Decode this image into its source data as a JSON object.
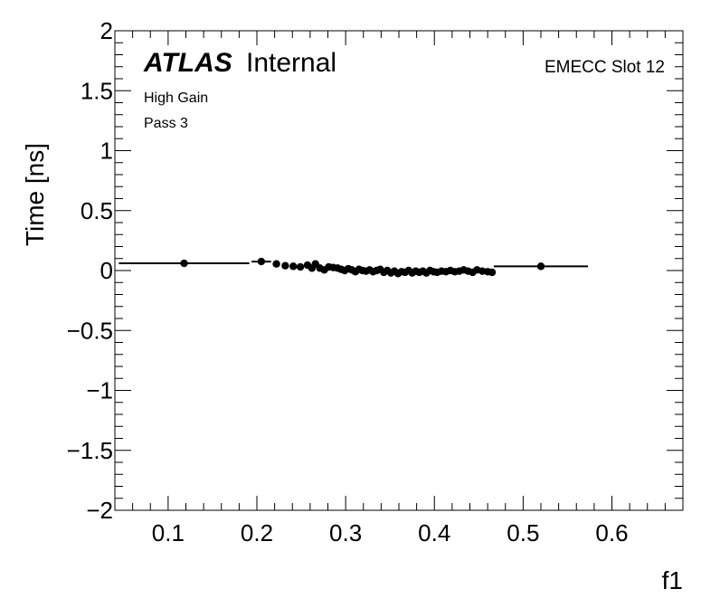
{
  "chart_data": {
    "type": "scatter",
    "title": "",
    "xlabel": "f1",
    "ylabel": "Time [ns]",
    "xlim": [
      0.04,
      0.68
    ],
    "ylim": [
      -2,
      2
    ],
    "xticks": [
      0.1,
      0.2,
      0.3,
      0.4,
      0.5,
      0.6
    ],
    "xtick_labels": [
      "0.1",
      "0.2",
      "0.3",
      "0.4",
      "0.5",
      "0.6"
    ],
    "yticks": [
      -2,
      -1.5,
      -1,
      -0.5,
      0,
      0.5,
      1,
      1.5,
      2
    ],
    "ytick_labels": [
      "−2",
      "−1.5",
      "−1",
      "−0.5",
      "0",
      "0.5",
      "1",
      "1.5",
      "2"
    ],
    "grid": false,
    "annotations": {
      "experiment": "ATLAS",
      "status": "Internal",
      "gain": "High Gain",
      "pass": "Pass 3",
      "region": "EMECC Slot 12"
    },
    "points": [
      {
        "x": 0.118,
        "y": 0.06,
        "xerr_low": 0.0735,
        "xerr_high": 0.0735
      },
      {
        "x": 0.205,
        "y": 0.075,
        "xerr_low": 0.011,
        "xerr_high": 0.011
      },
      {
        "x": 0.222,
        "y": 0.055
      },
      {
        "x": 0.232,
        "y": 0.04
      },
      {
        "x": 0.241,
        "y": 0.035
      },
      {
        "x": 0.249,
        "y": 0.03
      },
      {
        "x": 0.257,
        "y": 0.045
      },
      {
        "x": 0.262,
        "y": 0.02
      },
      {
        "x": 0.266,
        "y": 0.055
      },
      {
        "x": 0.271,
        "y": 0.02
      },
      {
        "x": 0.276,
        "y": 0.005
      },
      {
        "x": 0.281,
        "y": 0.03
      },
      {
        "x": 0.286,
        "y": 0.025
      },
      {
        "x": 0.291,
        "y": 0.02
      },
      {
        "x": 0.295,
        "y": 0.01
      },
      {
        "x": 0.299,
        "y": 0.0
      },
      {
        "x": 0.303,
        "y": 0.015
      },
      {
        "x": 0.307,
        "y": 0.005
      },
      {
        "x": 0.311,
        "y": -0.01
      },
      {
        "x": 0.315,
        "y": 0.01
      },
      {
        "x": 0.319,
        "y": 0.0
      },
      {
        "x": 0.323,
        "y": -0.005
      },
      {
        "x": 0.327,
        "y": 0.005
      },
      {
        "x": 0.331,
        "y": -0.01
      },
      {
        "x": 0.335,
        "y": 0.0
      },
      {
        "x": 0.339,
        "y": 0.01
      },
      {
        "x": 0.343,
        "y": -0.015
      },
      {
        "x": 0.347,
        "y": 0.0
      },
      {
        "x": 0.351,
        "y": -0.02
      },
      {
        "x": 0.355,
        "y": -0.005
      },
      {
        "x": 0.359,
        "y": -0.025
      },
      {
        "x": 0.363,
        "y": -0.01
      },
      {
        "x": 0.367,
        "y": -0.015
      },
      {
        "x": 0.371,
        "y": 0.0
      },
      {
        "x": 0.375,
        "y": -0.02
      },
      {
        "x": 0.379,
        "y": -0.005
      },
      {
        "x": 0.383,
        "y": -0.015
      },
      {
        "x": 0.387,
        "y": -0.005
      },
      {
        "x": 0.391,
        "y": -0.02
      },
      {
        "x": 0.395,
        "y": 0.0
      },
      {
        "x": 0.399,
        "y": -0.01
      },
      {
        "x": 0.403,
        "y": -0.015
      },
      {
        "x": 0.408,
        "y": -0.005
      },
      {
        "x": 0.413,
        "y": -0.01
      },
      {
        "x": 0.418,
        "y": 0.0
      },
      {
        "x": 0.423,
        "y": -0.01
      },
      {
        "x": 0.428,
        "y": -0.005
      },
      {
        "x": 0.433,
        "y": 0.005
      },
      {
        "x": 0.438,
        "y": -0.005
      },
      {
        "x": 0.443,
        "y": -0.015
      },
      {
        "x": 0.448,
        "y": 0.005
      },
      {
        "x": 0.454,
        "y": -0.005
      },
      {
        "x": 0.46,
        "y": -0.01
      },
      {
        "x": 0.465,
        "y": -0.015
      },
      {
        "x": 0.52,
        "y": 0.035,
        "xerr_low": 0.053,
        "xerr_high": 0.053
      }
    ]
  }
}
